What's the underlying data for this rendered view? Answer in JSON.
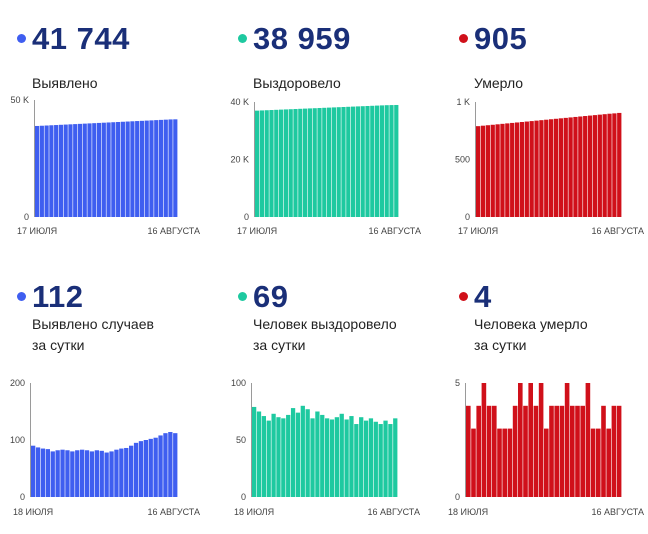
{
  "panels": [
    {
      "value": "41 744",
      "label": "Выявлено",
      "color": "#3f5ef0"
    },
    {
      "value": "38 959",
      "label": "Выздоровело",
      "color": "#1ec9a0"
    },
    {
      "value": "905",
      "label": "Умерло",
      "color": "#d0101a"
    },
    {
      "value": "112",
      "label": "Выявлено случаев\nза сутки",
      "color": "#3f5ef0"
    },
    {
      "value": "69",
      "label": "Человек выздоровело\nза сутки",
      "color": "#1ec9a0"
    },
    {
      "value": "4",
      "label": "Человека умерло\nза сутки",
      "color": "#d0101a"
    }
  ],
  "chart_data": [
    {
      "type": "bar",
      "series_color": "#3f5ef0",
      "ylim": [
        0,
        50000
      ],
      "yticks": [
        "0",
        "50 K"
      ],
      "ytick_values": [
        0,
        50000
      ],
      "xtick_labels": [
        "17 ИЮЛЯ",
        "16 АВГУСТА"
      ],
      "values": [
        38900,
        39000,
        39100,
        39200,
        39300,
        39400,
        39500,
        39600,
        39700,
        39800,
        39900,
        40000,
        40100,
        40200,
        40300,
        40400,
        40500,
        40600,
        40700,
        40800,
        40900,
        41000,
        41100,
        41200,
        41300,
        41400,
        41500,
        41600,
        41700,
        41744
      ]
    },
    {
      "type": "bar",
      "series_color": "#1ec9a0",
      "ylim": [
        0,
        40000
      ],
      "yticks": [
        "0",
        "20 K",
        "40 K"
      ],
      "ytick_values": [
        0,
        20000,
        40000
      ],
      "xtick_labels": [
        "17 ИЮЛЯ",
        "16 АВГУСТА"
      ],
      "values": [
        37000,
        37070,
        37140,
        37210,
        37280,
        37350,
        37420,
        37490,
        37560,
        37630,
        37700,
        37770,
        37840,
        37910,
        37980,
        38050,
        38120,
        38190,
        38260,
        38330,
        38400,
        38470,
        38540,
        38610,
        38680,
        38750,
        38820,
        38890,
        38930,
        38959
      ]
    },
    {
      "type": "bar",
      "series_color": "#d0101a",
      "ylim": [
        0,
        1000
      ],
      "yticks": [
        "0",
        "500",
        "1 K"
      ],
      "ytick_values": [
        0,
        500,
        1000
      ],
      "xtick_labels": [
        "17 ИЮЛЯ",
        "16 АВГУСТА"
      ],
      "values": [
        790,
        794,
        798,
        802,
        806,
        810,
        814,
        818,
        822,
        826,
        830,
        834,
        838,
        842,
        846,
        850,
        854,
        858,
        862,
        866,
        870,
        874,
        878,
        882,
        886,
        890,
        894,
        898,
        901,
        905
      ]
    },
    {
      "type": "bar",
      "series_color": "#3f5ef0",
      "ylim": [
        0,
        200
      ],
      "yticks": [
        "0",
        "100",
        "200"
      ],
      "ytick_values": [
        0,
        100,
        200
      ],
      "xtick_labels": [
        "18 ИЮЛЯ",
        "16 АВГУСТА"
      ],
      "values": [
        90,
        87,
        85,
        84,
        80,
        82,
        83,
        82,
        80,
        82,
        83,
        82,
        80,
        82,
        81,
        78,
        80,
        83,
        85,
        86,
        90,
        95,
        98,
        100,
        102,
        104,
        108,
        112,
        114,
        112
      ]
    },
    {
      "type": "bar",
      "series_color": "#1ec9a0",
      "ylim": [
        0,
        100
      ],
      "yticks": [
        "0",
        "50",
        "100"
      ],
      "ytick_values": [
        0,
        50,
        100
      ],
      "xtick_labels": [
        "18 ИЮЛЯ",
        "16 АВГУСТА"
      ],
      "values": [
        79,
        75,
        71,
        67,
        73,
        70,
        69,
        72,
        78,
        74,
        80,
        77,
        69,
        75,
        72,
        69,
        68,
        70,
        73,
        68,
        71,
        64,
        70,
        67,
        69,
        66,
        64,
        67,
        64,
        69
      ]
    },
    {
      "type": "bar",
      "series_color": "#d0101a",
      "ylim": [
        0,
        5
      ],
      "yticks": [
        "0",
        "5"
      ],
      "ytick_values": [
        0,
        5
      ],
      "xtick_labels": [
        "18 ИЮЛЯ",
        "16 АВГУСТА"
      ],
      "values": [
        4,
        3,
        4,
        5,
        4,
        4,
        3,
        3,
        3,
        4,
        5,
        4,
        5,
        4,
        5,
        3,
        4,
        4,
        4,
        5,
        4,
        4,
        4,
        5,
        3,
        3,
        4,
        3,
        4,
        4
      ]
    }
  ]
}
